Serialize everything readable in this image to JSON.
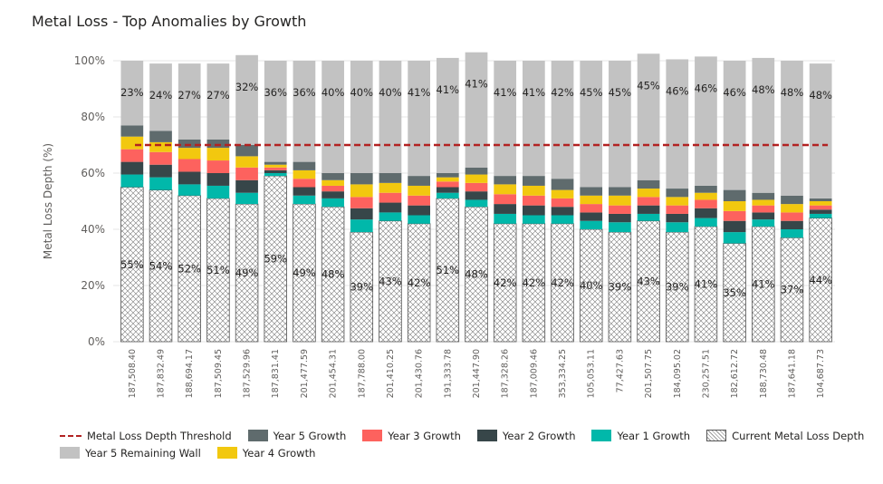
{
  "chart_data": {
    "type": "bar",
    "stacked": true,
    "title": "Metal Loss - Top Anomalies by Growth",
    "ylabel": "Metal Loss Depth (%)",
    "xlabel": "",
    "ylim": [
      0,
      100
    ],
    "yticks": [
      "0%",
      "20%",
      "40%",
      "60%",
      "80%",
      "100%"
    ],
    "threshold": {
      "name": "Metal Loss Depth Threshold",
      "value": 70,
      "color": "#b22222"
    },
    "categories": [
      "187,508.40",
      "187,832.49",
      "188,694.17",
      "187,509.45",
      "187,529.96",
      "187,831.41",
      "201,477.59",
      "201,454.31",
      "187,788.00",
      "201,410.25",
      "201,430.76",
      "191,333.78",
      "201,447.90",
      "187,328.26",
      "187,009.46",
      "353,334.25",
      "105,053.11",
      "77,427.63",
      "201,507.75",
      "184,095.02",
      "230,257.51",
      "182,612.72",
      "188,730.48",
      "187,641.18",
      "104,687.73"
    ],
    "series": [
      {
        "name": "Current Metal Loss Depth",
        "color": "#ffffff",
        "pattern": "crosshatch",
        "values": [
          55,
          54,
          52,
          51,
          49,
          59,
          49,
          48,
          39,
          43,
          42,
          51,
          48,
          42,
          42,
          42,
          40,
          39,
          43,
          39,
          41,
          35,
          41,
          37,
          44
        ],
        "labels": [
          "55%",
          "54%",
          "52%",
          "51%",
          "49%",
          "59%",
          "49%",
          "48%",
          "39%",
          "43%",
          "42%",
          "51%",
          "48%",
          "42%",
          "42%",
          "42%",
          "40%",
          "39%",
          "43%",
          "39%",
          "41%",
          "35%",
          "41%",
          "37%",
          "44%"
        ]
      },
      {
        "name": "Year 1 Growth",
        "color": "#01b8aa",
        "values": [
          4.5,
          4.5,
          4,
          4.5,
          4,
          1,
          3,
          3,
          4.5,
          3,
          3,
          2,
          2.5,
          3.5,
          3,
          3,
          3,
          3.5,
          2.5,
          3.5,
          3,
          4,
          2.5,
          3,
          1.5
        ]
      },
      {
        "name": "Year 2 Growth",
        "color": "#374649",
        "values": [
          4.5,
          4.5,
          4.5,
          4.5,
          4.5,
          1,
          3,
          2.5,
          4,
          3.5,
          3.5,
          2,
          3,
          3.5,
          3.5,
          3,
          3,
          3,
          3,
          3,
          3.5,
          4,
          2.5,
          3,
          1.5
        ]
      },
      {
        "name": "Year 3 Growth",
        "color": "#fd625e",
        "values": [
          4.5,
          4.5,
          4.5,
          4.5,
          4.5,
          1,
          3,
          2,
          4,
          3.5,
          3.5,
          2,
          3,
          3.5,
          3.5,
          3,
          3,
          3,
          3,
          3,
          3,
          3.5,
          2.5,
          3,
          1.5
        ]
      },
      {
        "name": "Year 4 Growth",
        "color": "#f2c80f",
        "values": [
          4.5,
          3.5,
          4,
          4.5,
          4,
          1,
          3,
          2,
          4.5,
          3.5,
          3.5,
          1.5,
          3,
          3.5,
          3.5,
          3,
          3,
          3.5,
          3,
          3,
          2.5,
          3.5,
          2,
          3,
          1.5
        ]
      },
      {
        "name": "Year 5 Growth",
        "color": "#5f6b6d",
        "values": [
          4,
          4,
          3,
          3,
          4,
          1,
          3,
          2.5,
          4,
          3.5,
          3.5,
          1.5,
          2.5,
          3,
          3.5,
          4,
          3,
          3,
          3,
          3,
          2.5,
          4,
          2.5,
          3,
          1
        ]
      },
      {
        "name": "Year 5 Remaining Wall",
        "color": "#c2c2c2",
        "values": [
          23,
          24,
          27,
          27,
          32,
          36,
          36,
          40,
          40,
          40,
          41,
          41,
          41,
          41,
          41,
          42,
          45,
          45,
          45,
          46,
          46,
          46,
          48,
          48,
          48
        ],
        "labels": [
          "23%",
          "24%",
          "27%",
          "27%",
          "32%",
          "36%",
          "36%",
          "40%",
          "40%",
          "40%",
          "41%",
          "41%",
          "41%",
          "41%",
          "41%",
          "42%",
          "45%",
          "45%",
          "45%",
          "46%",
          "46%",
          "46%",
          "48%",
          "48%",
          "48%"
        ]
      }
    ],
    "legend": {
      "placement": "bottom",
      "items": [
        {
          "label": "Metal Loss Depth Threshold",
          "kind": "line",
          "color": "#b22222"
        },
        {
          "label": "Year 5 Growth",
          "kind": "swatch",
          "color": "#5f6b6d"
        },
        {
          "label": "Year 3 Growth",
          "kind": "swatch",
          "color": "#fd625e"
        },
        {
          "label": "Year 2 Growth",
          "kind": "swatch",
          "color": "#374649"
        },
        {
          "label": "Year 1 Growth",
          "kind": "swatch",
          "color": "#01b8aa"
        },
        {
          "label": "Current Metal Loss Depth",
          "kind": "hatch",
          "color": "#ffffff"
        },
        {
          "label": "Year 5 Remaining Wall",
          "kind": "swatch",
          "color": "#c2c2c2"
        },
        {
          "label": "Year 4 Growth",
          "kind": "swatch",
          "color": "#f2c80f"
        }
      ]
    }
  }
}
